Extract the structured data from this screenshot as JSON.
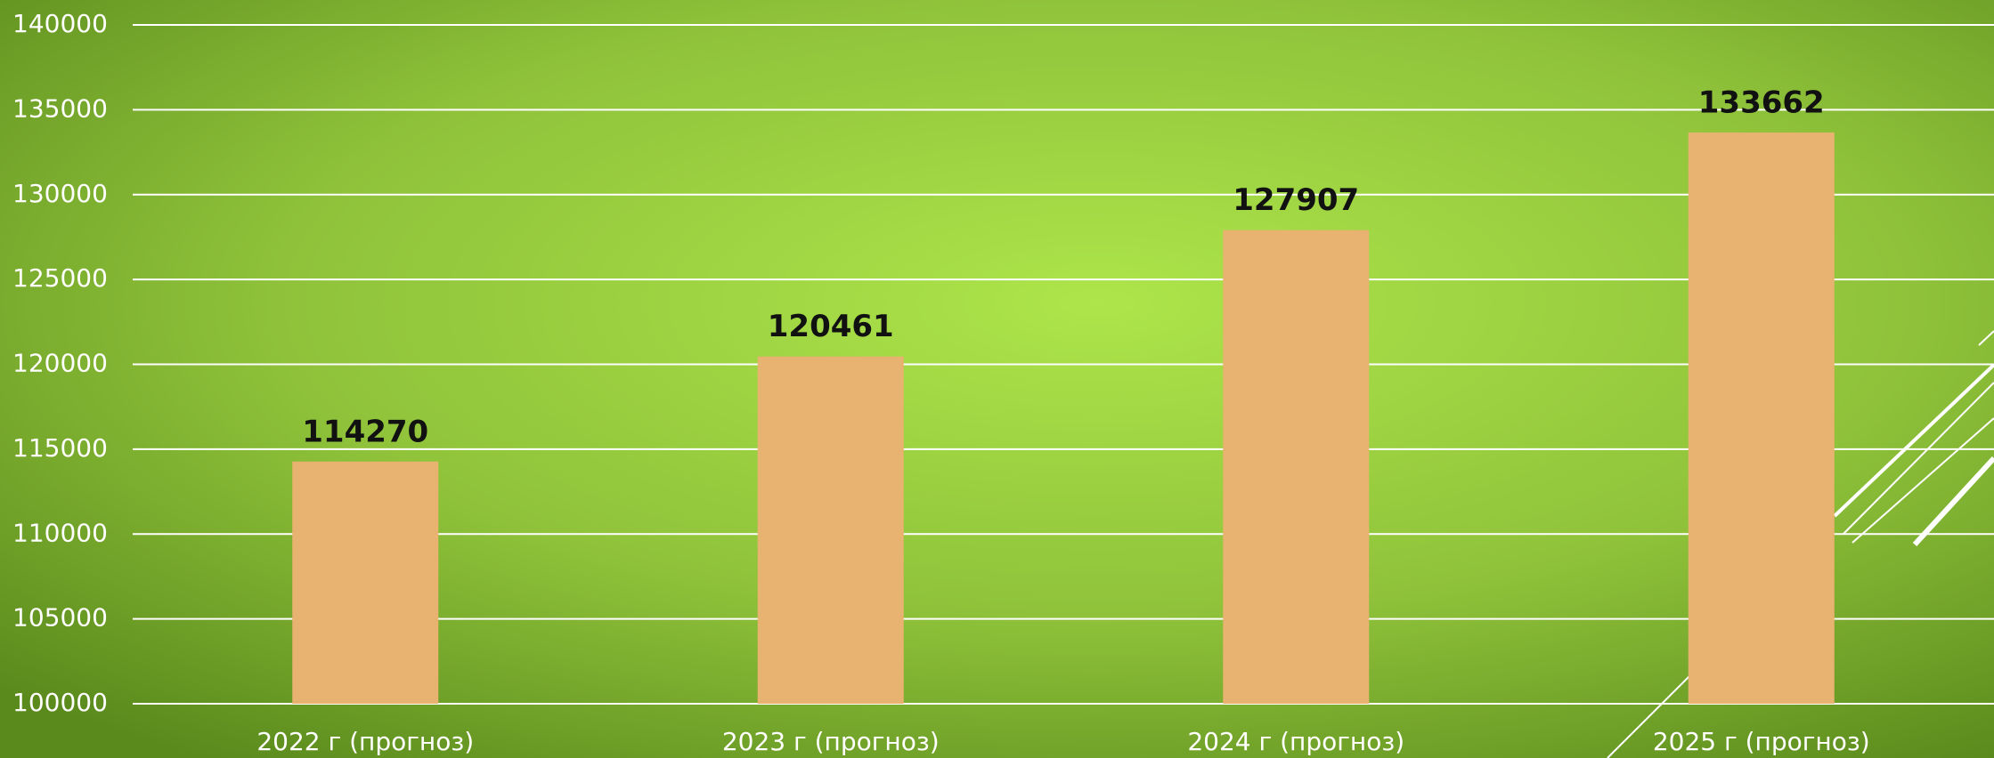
{
  "chart_data": {
    "type": "bar",
    "categories": [
      "2022 г (прогноз)",
      "2023 г (прогноз)",
      "2024 г (прогноз)",
      "2025 г (прогноз)"
    ],
    "values": [
      114270,
      120461,
      127907,
      133662
    ],
    "color": "#e8b270",
    "ylim": [
      100000,
      140000
    ],
    "yticks": [
      100000,
      105000,
      110000,
      115000,
      120000,
      125000,
      130000,
      135000,
      140000
    ],
    "grid": true
  }
}
